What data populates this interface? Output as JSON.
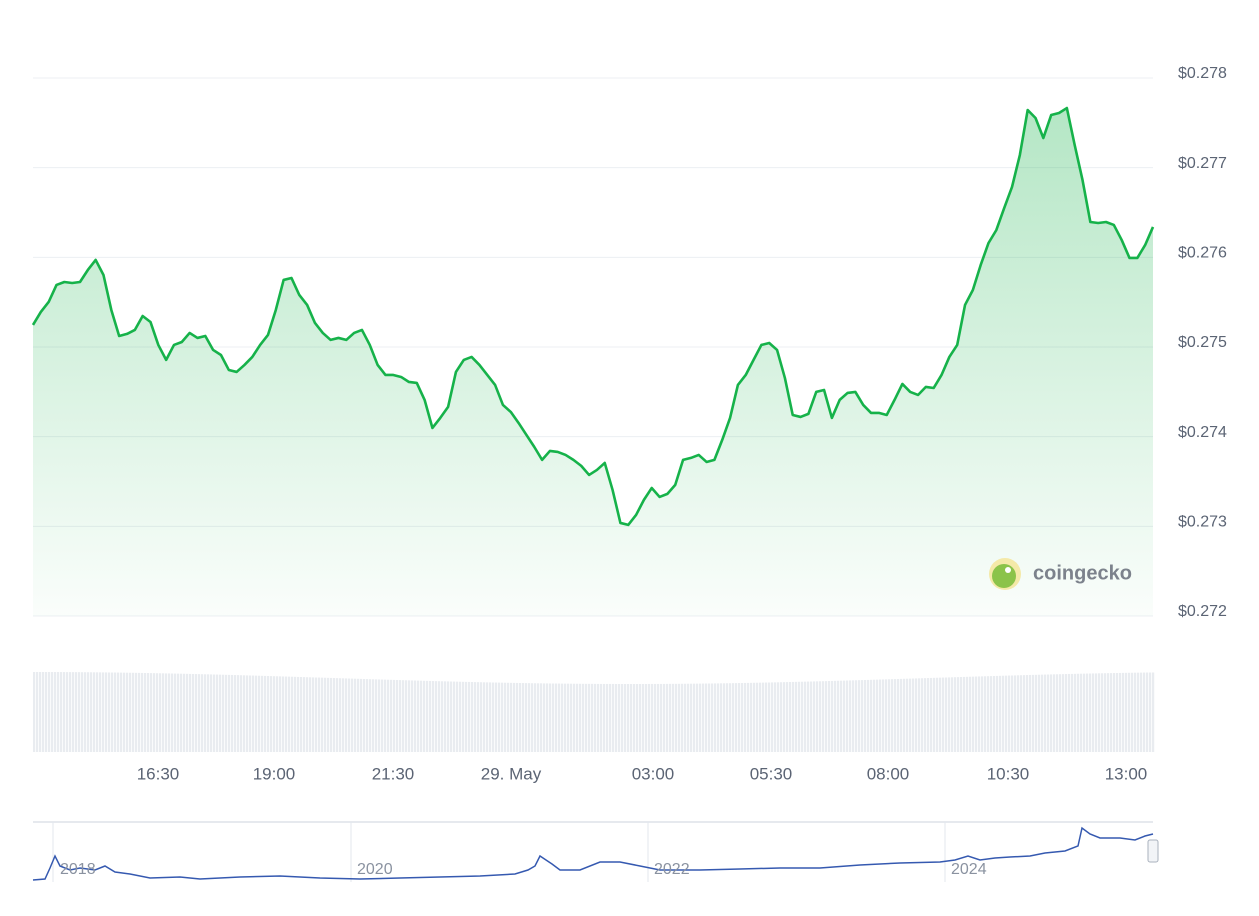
{
  "chart_data": {
    "type": "area",
    "values": [
      0.275246,
      0.275391,
      0.275502,
      0.275692,
      0.275725,
      0.275714,
      0.275725,
      0.275859,
      0.275971,
      0.275803,
      0.275413,
      0.275123,
      0.275146,
      0.27519,
      0.275346,
      0.275279,
      0.275023,
      0.274856,
      0.275023,
      0.275056,
      0.275157,
      0.275101,
      0.275123,
      0.274967,
      0.274911,
      0.274744,
      0.274722,
      0.2748,
      0.274889,
      0.275023,
      0.275134,
      0.275413,
      0.275748,
      0.27577,
      0.27558,
      0.275469,
      0.275268,
      0.275157,
      0.275079,
      0.275101,
      0.275079,
      0.275157,
      0.27519,
      0.275023,
      0.2748,
      0.274688,
      0.274688,
      0.274666,
      0.27461,
      0.274599,
      0.27441,
      0.274097,
      0.274209,
      0.274332,
      0.274722,
      0.274856,
      0.274889,
      0.2748,
      0.274688,
      0.274577,
      0.274354,
      0.274276,
      0.274153,
      0.274019,
      0.273886,
      0.273741,
      0.273841,
      0.27383,
      0.273796,
      0.273741,
      0.273674,
      0.273573,
      0.273629,
      0.273707,
      0.273406,
      0.273038,
      0.273016,
      0.273127,
      0.273295,
      0.273428,
      0.273328,
      0.273362,
      0.273462,
      0.273741,
      0.273763,
      0.273796,
      0.273718,
      0.273741,
      0.273964,
      0.274209,
      0.274577,
      0.274688,
      0.274856,
      0.275023,
      0.275045,
      0.274967,
      0.274655,
      0.274242,
      0.27422,
      0.274254,
      0.274499,
      0.274521,
      0.274209,
      0.27441,
      0.274488,
      0.274499,
      0.274354,
      0.274265,
      0.274265,
      0.274242,
      0.27441,
      0.274588,
      0.274499,
      0.274465,
      0.274555,
      0.274543,
      0.274688,
      0.274889,
      0.275023,
      0.275469,
      0.275636,
      0.275915,
      0.27616,
      0.276305,
      0.27655,
      0.276785,
      0.277141,
      0.277643,
      0.277554,
      0.277331,
      0.277587,
      0.27761,
      0.277665,
      0.277253,
      0.276863,
      0.276394,
      0.276383,
      0.276394,
      0.276361,
      0.276194,
      0.275993,
      0.275993,
      0.276138,
      0.276339
    ],
    "color": "#16b24a",
    "ylim": [
      0.272,
      0.278
    ],
    "yticks": [
      {
        "value": 0.272,
        "label": "$0.272"
      },
      {
        "value": 0.273,
        "label": "$0.273"
      },
      {
        "value": 0.274,
        "label": "$0.274"
      },
      {
        "value": 0.275,
        "label": "$0.275"
      },
      {
        "value": 0.276,
        "label": "$0.276"
      },
      {
        "value": 0.277,
        "label": "$0.277"
      },
      {
        "value": 0.278,
        "label": "$0.278"
      }
    ],
    "xticks": [
      "16:30",
      "19:00",
      "21:30",
      "29. May",
      "03:00",
      "05:30",
      "08:00",
      "10:30",
      "13:00"
    ],
    "grid": true
  },
  "watermark": "coingecko",
  "navigator": {
    "labels": [
      "2018",
      "2020",
      "2022",
      "2024"
    ]
  }
}
